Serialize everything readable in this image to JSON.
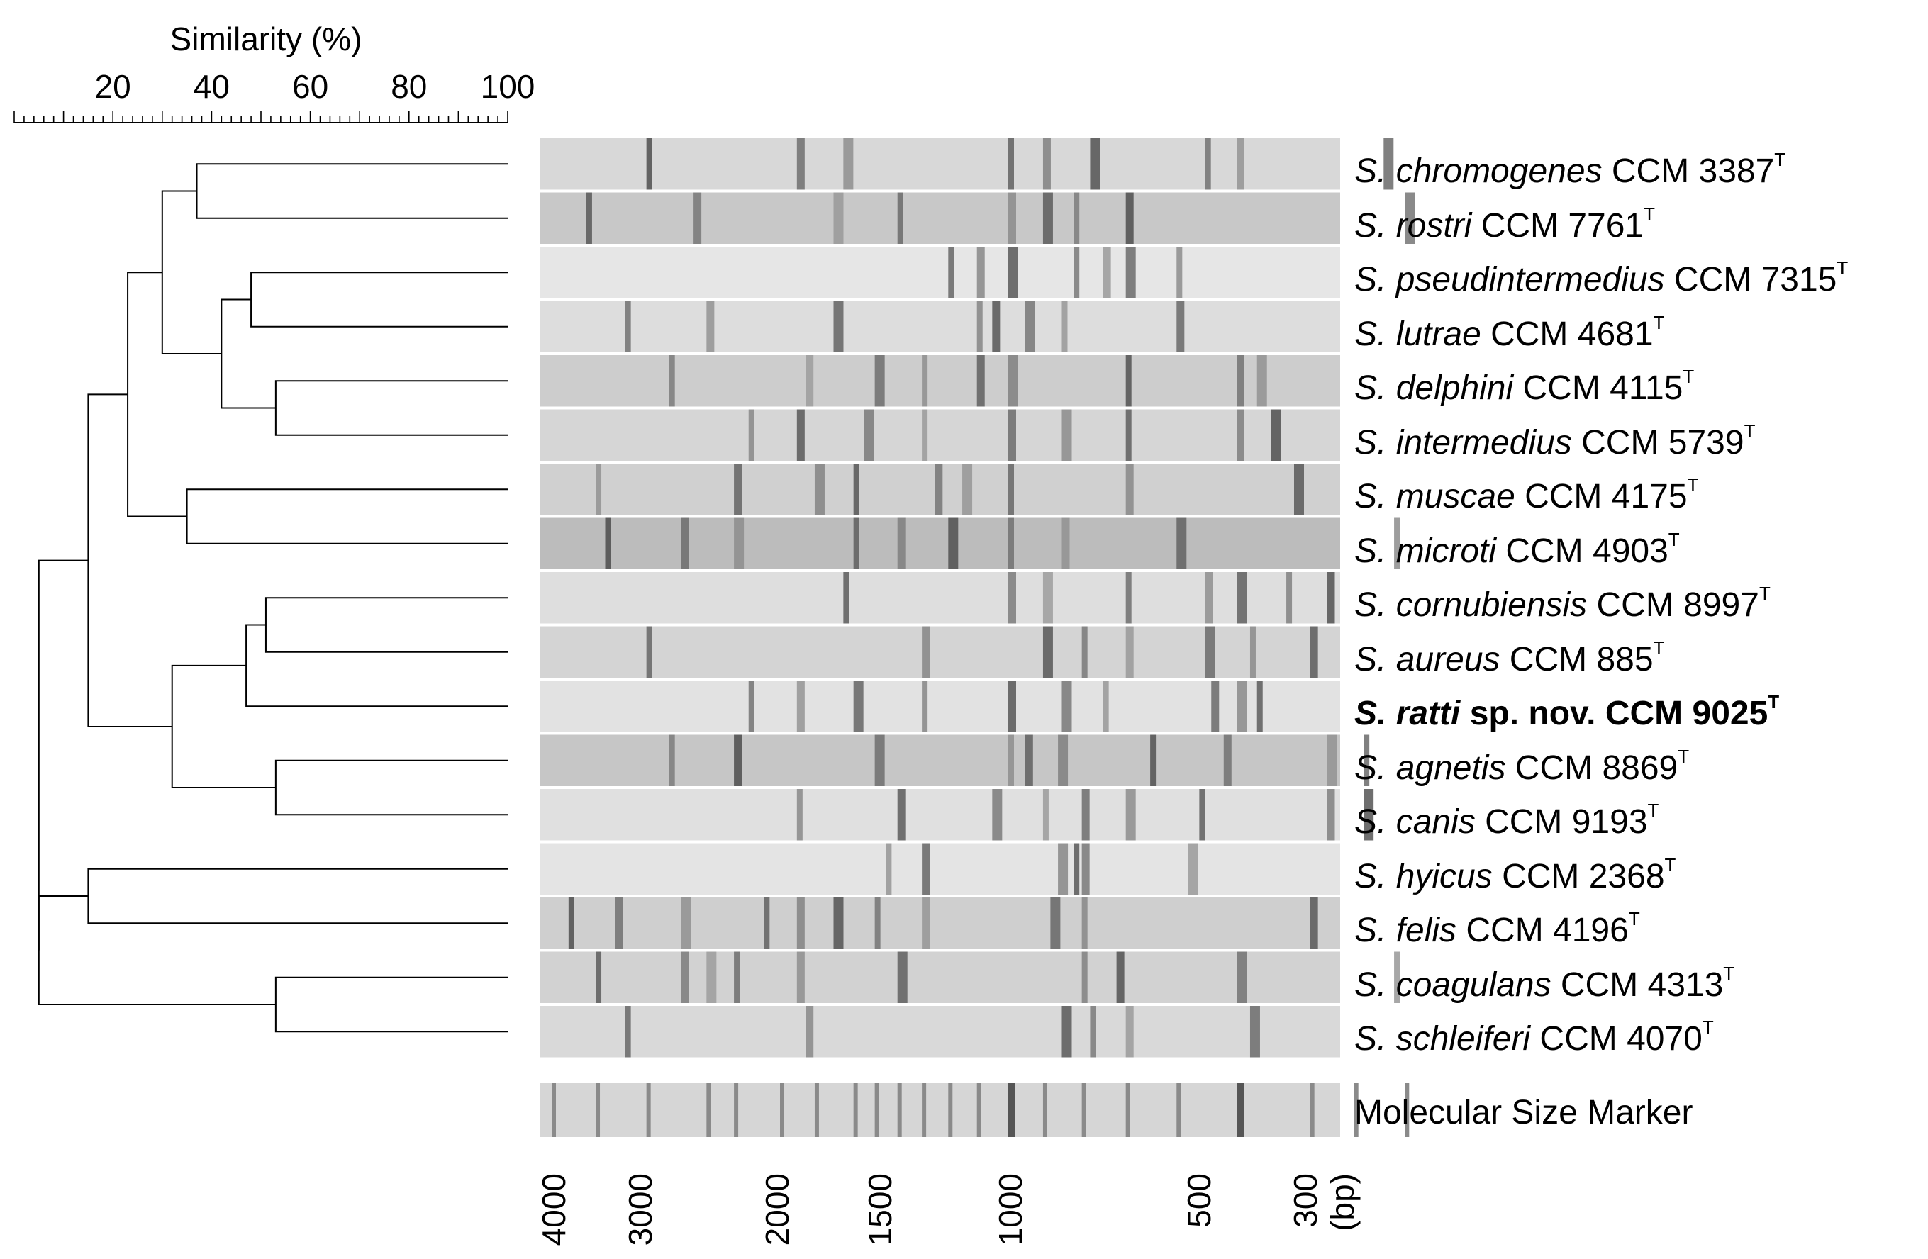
{
  "axis": {
    "title": "Similarity (%)",
    "ticks": [
      "20",
      "40",
      "60",
      "80",
      "100"
    ]
  },
  "lanes": [
    {
      "genus": "S.",
      "species": "chromogenes",
      "strain": "CCM 3387",
      "sup": "T",
      "bold": false
    },
    {
      "genus": "S.",
      "species": "rostri",
      "strain": "CCM 7761",
      "sup": "T",
      "bold": false
    },
    {
      "genus": "S.",
      "species": "pseudintermedius",
      "strain": "CCM 7315",
      "sup": "T",
      "bold": false
    },
    {
      "genus": "S.",
      "species": "lutrae",
      "strain": "CCM 4681",
      "sup": "T",
      "bold": false
    },
    {
      "genus": "S.",
      "species": "delphini",
      "strain": "CCM 4115",
      "sup": "T",
      "bold": false
    },
    {
      "genus": "S.",
      "species": "intermedius",
      "strain": "CCM 5739",
      "sup": "T",
      "bold": false
    },
    {
      "genus": "S.",
      "species": "muscae",
      "strain": "CCM 4175",
      "sup": "T",
      "bold": false
    },
    {
      "genus": "S.",
      "species": "microti",
      "strain": "CCM 4903",
      "sup": "T",
      "bold": false
    },
    {
      "genus": "S.",
      "species": "cornubiensis",
      "strain": "CCM 8997",
      "sup": "T",
      "bold": false
    },
    {
      "genus": "S.",
      "species": "aureus",
      "strain": "CCM 885",
      "sup": "T",
      "bold": false
    },
    {
      "genus": "S.",
      "species": "ratti",
      "strain": "sp. nov. CCM 9025",
      "sup": "T",
      "bold": true
    },
    {
      "genus": "S.",
      "species": "agnetis",
      "strain": "CCM 8869",
      "sup": "T",
      "bold": false
    },
    {
      "genus": "S.",
      "species": "canis",
      "strain": "CCM 9193",
      "sup": "T",
      "bold": false
    },
    {
      "genus": "S.",
      "species": "hyicus",
      "strain": "CCM 2368",
      "sup": "T",
      "bold": false
    },
    {
      "genus": "S.",
      "species": "felis",
      "strain": "CCM 4196",
      "sup": "T",
      "bold": false
    },
    {
      "genus": "S.",
      "species": "coagulans",
      "strain": "CCM 4313",
      "sup": "T",
      "bold": false
    },
    {
      "genus": "S.",
      "species": "schleiferi",
      "strain": "CCM 4070",
      "sup": "T",
      "bold": false
    }
  ],
  "marker": {
    "label": "Molecular Size Marker"
  },
  "bp_axis": {
    "labels": [
      "4000",
      "3000",
      "2000",
      "1500",
      "1000",
      "500",
      "300",
      "(bp)"
    ]
  },
  "dendrogram": {
    "merges": [
      {
        "a": 0,
        "b": 1,
        "similarity": 37
      },
      {
        "a": 2,
        "b": 3,
        "similarity": 48
      },
      {
        "a": 4,
        "b": 5,
        "similarity": 53
      },
      {
        "a": 6,
        "b": 7,
        "similarity": 35
      },
      {
        "a": 8,
        "b": 9,
        "similarity": 51
      },
      {
        "a": 11,
        "b": 12,
        "similarity": 53
      }
    ]
  }
}
